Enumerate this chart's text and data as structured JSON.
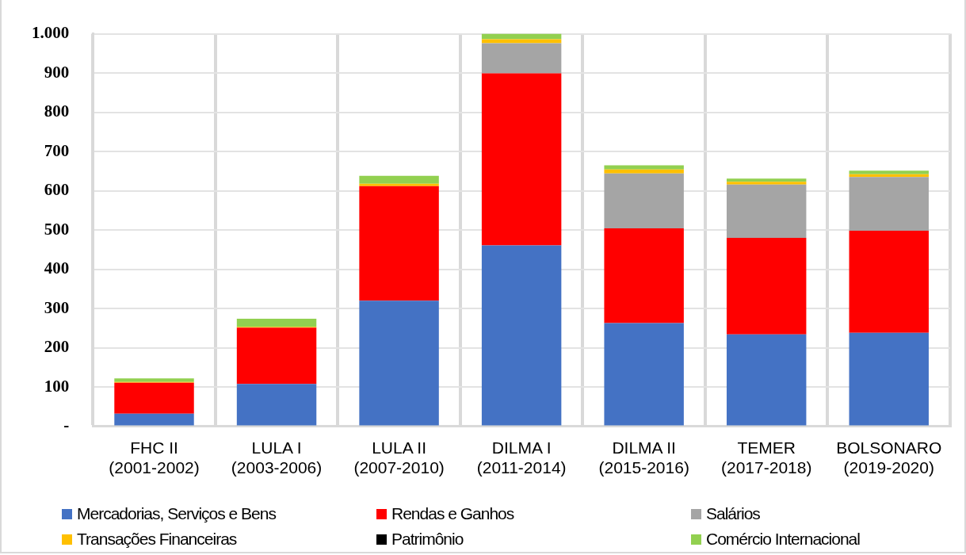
{
  "chart_data": {
    "type": "bar",
    "stacked": true,
    "categories": [
      "FHC II\n(2001-2002)",
      "LULA I\n(2003-2006)",
      "LULA II\n(2007-2010)",
      "DILMA I\n(2011-2014)",
      "DILMA II\n(2015-2016)",
      "TEMER\n(2017-2018)",
      "BOLSONARO\n(2019-2020)"
    ],
    "series": [
      {
        "name": "Mercadorias, Serviços e Bens",
        "color": "#4472c4",
        "values": [
          32,
          108,
          320,
          461,
          263,
          234,
          238
        ]
      },
      {
        "name": "Rendas e Ganhos",
        "color": "#ff0000",
        "values": [
          79,
          143,
          292,
          438,
          241,
          246,
          260
        ]
      },
      {
        "name": "Salários",
        "color": "#a5a5a5",
        "values": [
          0,
          0,
          0,
          77,
          140,
          136,
          137
        ]
      },
      {
        "name": "Transações Financeiras",
        "color": "#ffc000",
        "values": [
          2,
          2,
          6,
          10,
          10,
          7,
          7
        ]
      },
      {
        "name": "Patrimônio",
        "color": "#000000",
        "values": [
          0,
          0,
          0,
          0,
          0,
          0,
          0
        ]
      },
      {
        "name": "Comércio Internacional",
        "color": "#92d050",
        "values": [
          9,
          21,
          20,
          14,
          11,
          8,
          9
        ]
      }
    ],
    "ylim": [
      0,
      1000
    ],
    "yticks": [
      {
        "value": 0,
        "label": "-"
      },
      {
        "value": 100,
        "label": "100"
      },
      {
        "value": 200,
        "label": "200"
      },
      {
        "value": 300,
        "label": "300"
      },
      {
        "value": 400,
        "label": "400"
      },
      {
        "value": 500,
        "label": "500"
      },
      {
        "value": 600,
        "label": "600"
      },
      {
        "value": 700,
        "label": "700"
      },
      {
        "value": 800,
        "label": "800"
      },
      {
        "value": 900,
        "label": "900"
      },
      {
        "value": 1000,
        "label": "1.000"
      }
    ],
    "grid": true,
    "legend": "bottom"
  }
}
